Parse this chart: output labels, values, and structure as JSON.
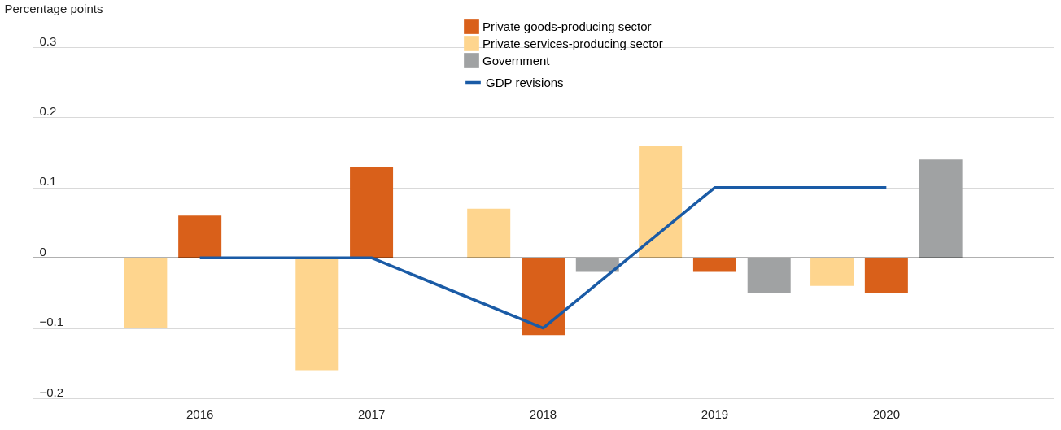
{
  "chart_data": {
    "type": "bar",
    "ylabel": "Percentage points",
    "categories": [
      "2016",
      "2017",
      "2018",
      "2019",
      "2020"
    ],
    "series": [
      {
        "name": "Private goods-producing sector",
        "color": "#d9601a",
        "values": [
          0.06,
          0.13,
          -0.11,
          -0.02,
          -0.05
        ]
      },
      {
        "name": "Private services-producing sector",
        "color": "#fed58e",
        "values": [
          -0.1,
          -0.16,
          0.07,
          0.16,
          -0.04
        ]
      },
      {
        "name": "Government",
        "color": "#a0a2a3",
        "values": [
          0,
          0,
          -0.02,
          -0.05,
          0.14
        ]
      },
      {
        "name": "GDP revisions",
        "type": "line",
        "color": "#1a5ba6",
        "values": [
          0,
          0,
          -0.1,
          0.1,
          0.1
        ]
      }
    ],
    "ylim": [
      -0.2,
      0.3
    ],
    "yticks": [
      -0.2,
      -0.1,
      0,
      0.1,
      0.2,
      0.3
    ],
    "grid": "y",
    "legend": "top",
    "marker": "none",
    "line_style": "solid",
    "ref_lines": [
      {
        "axis": "y",
        "value": 0,
        "color": "#000000"
      }
    ]
  }
}
